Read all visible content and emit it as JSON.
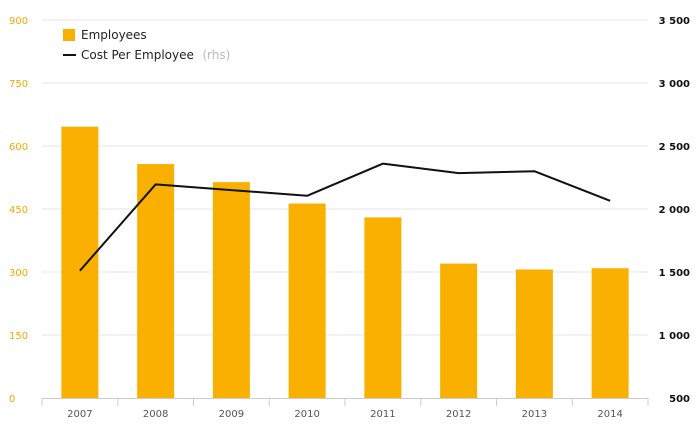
{
  "chart_data": {
    "type": "bar",
    "categories": [
      "2007",
      "2008",
      "2009",
      "2010",
      "2011",
      "2012",
      "2013",
      "2014"
    ],
    "series": [
      {
        "name": "Employees",
        "type": "bar",
        "axis": "left",
        "values": [
          646,
          557,
          514,
          463,
          430,
          320,
          306,
          309
        ]
      },
      {
        "name": "Cost Per Employee",
        "axis_suffix": "(rhs)",
        "type": "line",
        "axis": "right",
        "values": [
          1510,
          2195,
          2150,
          2105,
          2360,
          2285,
          2300,
          2065
        ]
      }
    ],
    "y_left": {
      "min": 0,
      "max": 900,
      "ticks": [
        "0",
        "150",
        "300",
        "450",
        "600",
        "750",
        "900"
      ]
    },
    "y_right": {
      "min": 500,
      "max": 3500,
      "ticks": [
        "500",
        "1 000",
        "1 500",
        "2 000",
        "2 500",
        "3 000",
        "3 500"
      ]
    },
    "grid": true,
    "legend_position": "top-left",
    "colors": {
      "bar": "#f9b000",
      "line": "#111111",
      "left_axis": "#f5a800",
      "right_axis": "#111111",
      "grid": "#e6e6e6"
    }
  }
}
